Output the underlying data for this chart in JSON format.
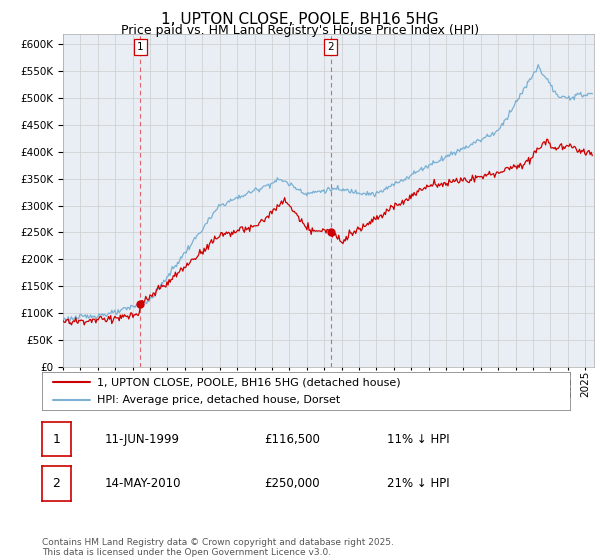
{
  "title": "1, UPTON CLOSE, POOLE, BH16 5HG",
  "subtitle": "Price paid vs. HM Land Registry's House Price Index (HPI)",
  "ylim": [
    0,
    620000
  ],
  "yticks": [
    0,
    50000,
    100000,
    150000,
    200000,
    250000,
    300000,
    350000,
    400000,
    450000,
    500000,
    550000,
    600000
  ],
  "xmin": 1995,
  "xmax": 2025.5,
  "marker1_x": 1999.44,
  "marker1_y": 116500,
  "marker2_x": 2010.37,
  "marker2_y": 250000,
  "marker1_label": "1",
  "marker2_label": "2",
  "legend_line1": "1, UPTON CLOSE, POOLE, BH16 5HG (detached house)",
  "legend_line2": "HPI: Average price, detached house, Dorset",
  "footnote": "Contains HM Land Registry data © Crown copyright and database right 2025.\nThis data is licensed under the Open Government Licence v3.0.",
  "line_color_red": "#cc0000",
  "line_color_blue": "#7ab0d4",
  "marker_color": "#cc0000",
  "vline_color": "#dd6666",
  "grid_color": "#cccccc",
  "bg_color": "#ffffff",
  "plot_bg": "#e8eef4",
  "title_fontsize": 11,
  "subtitle_fontsize": 9,
  "tick_fontsize": 7.5,
  "legend_fontsize": 8,
  "table_fontsize": 8.5,
  "footnote_fontsize": 6.5
}
